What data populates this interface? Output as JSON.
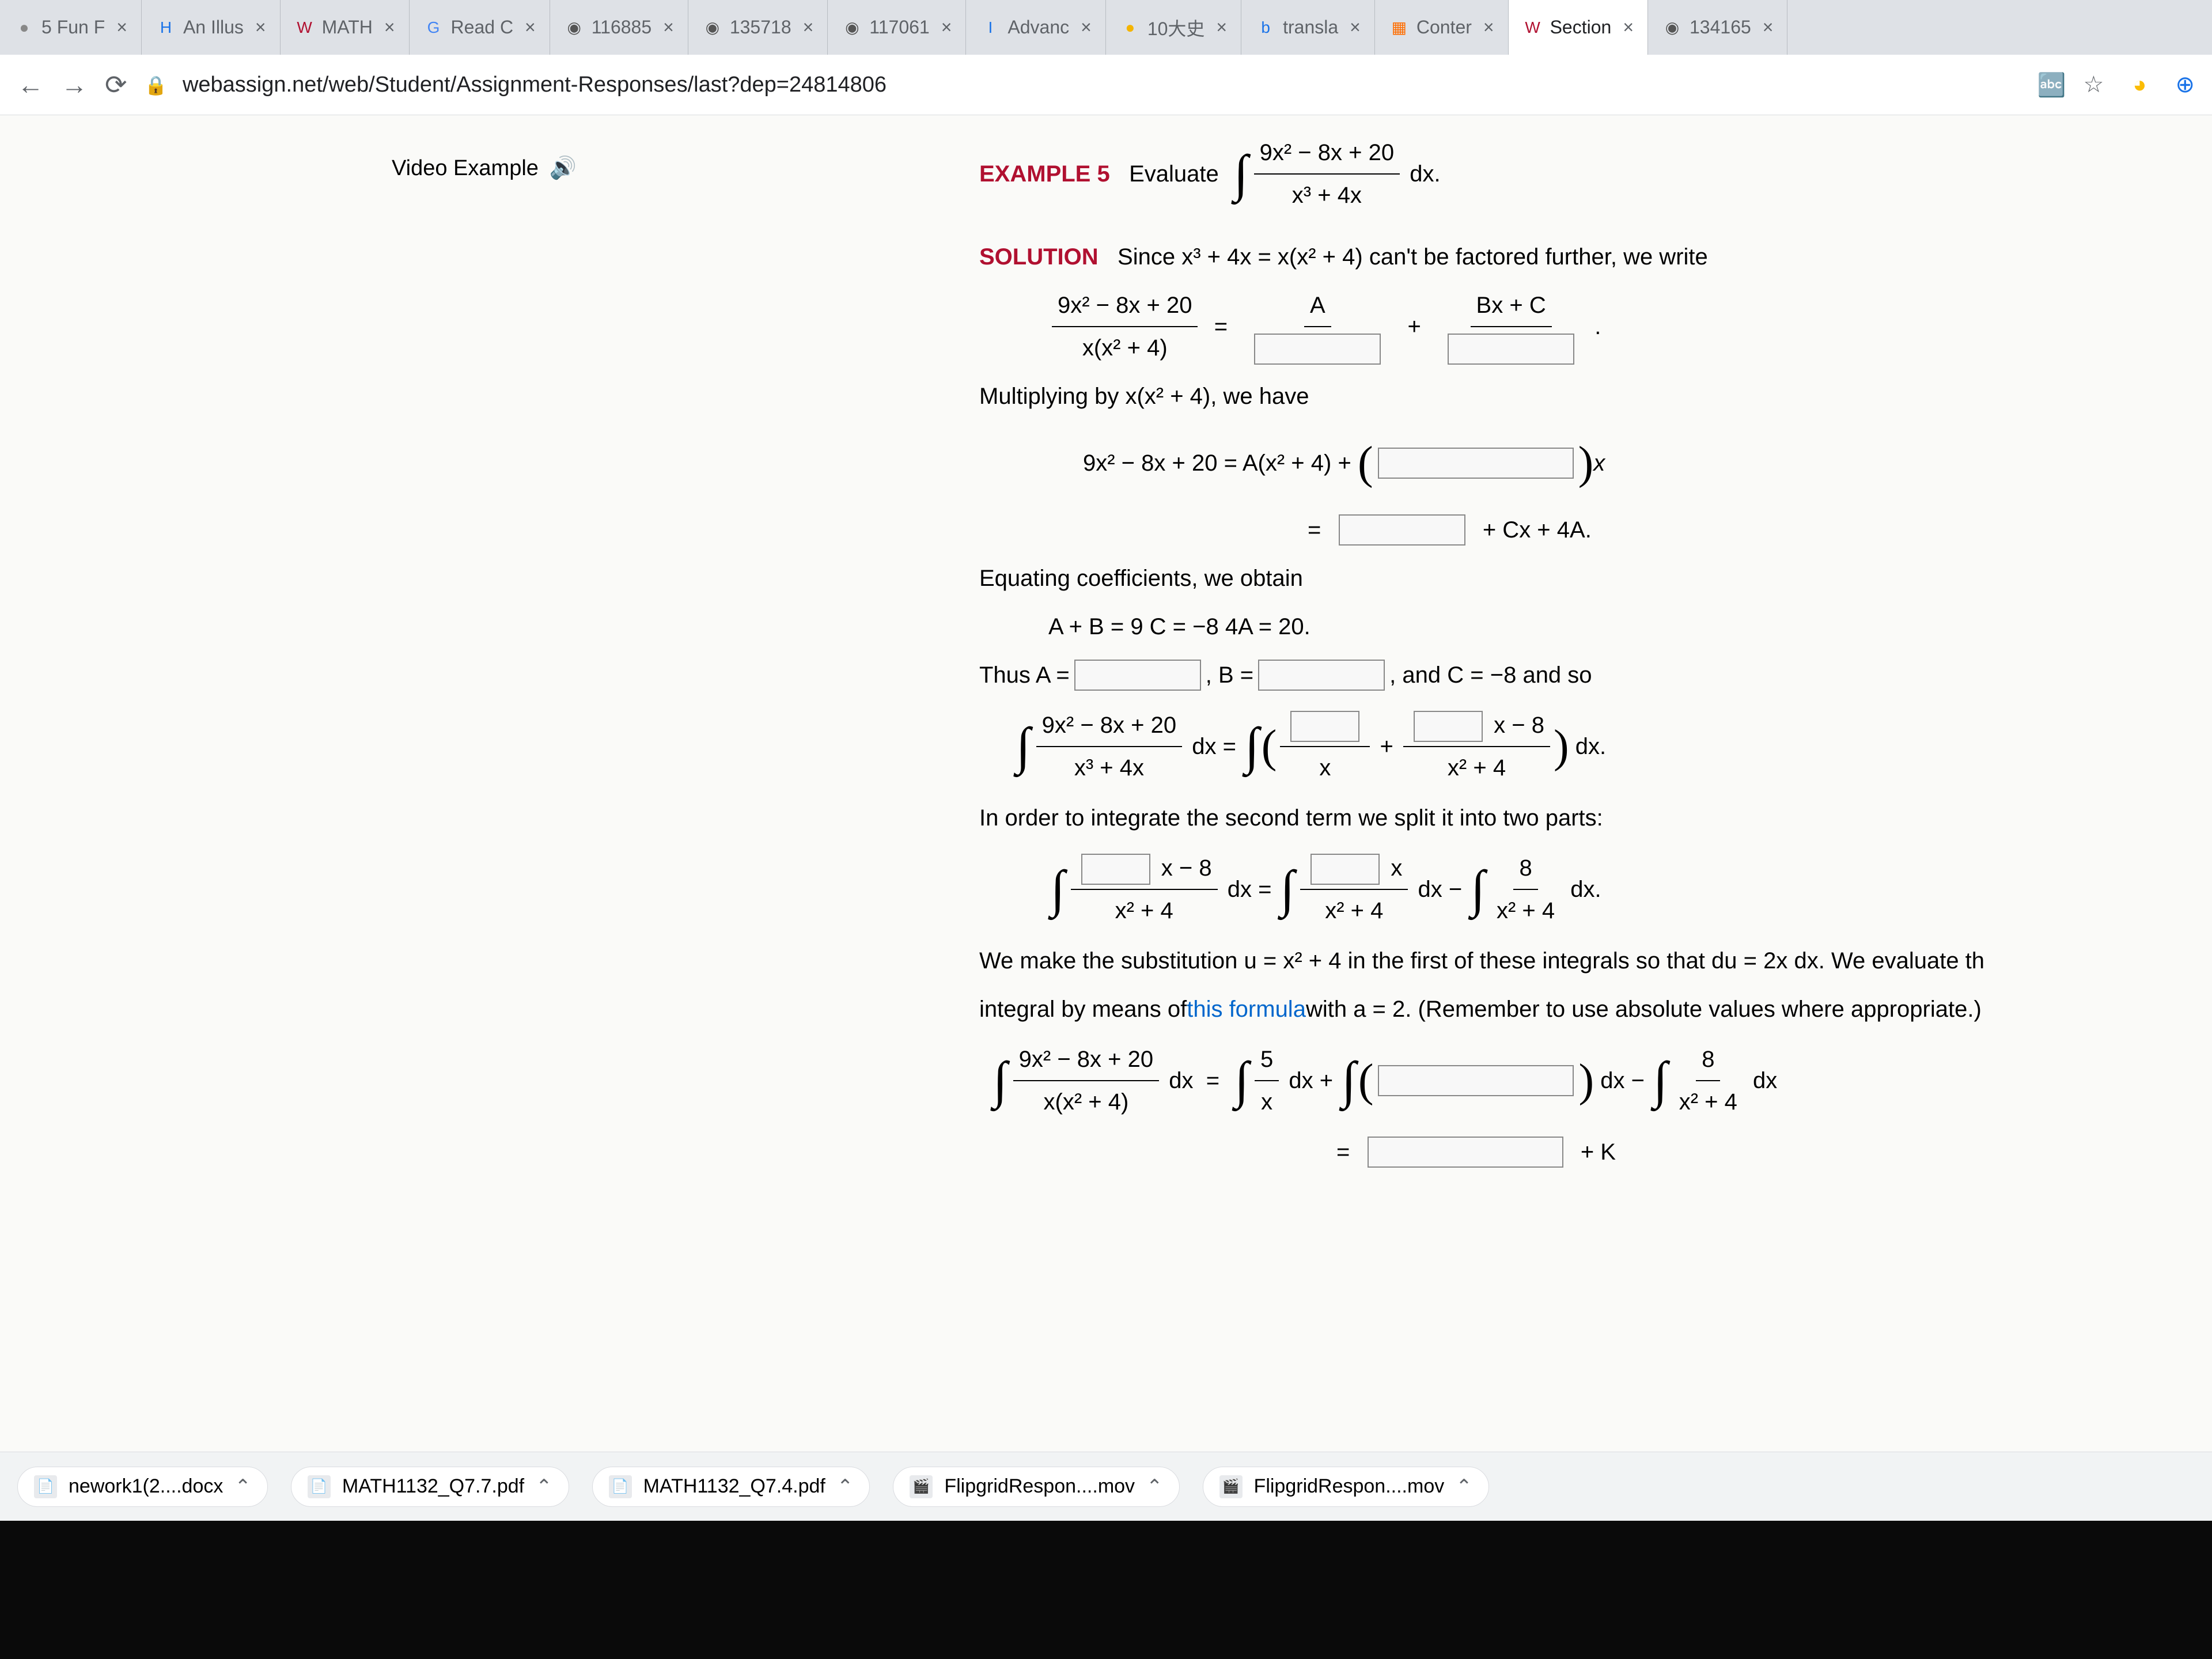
{
  "browser": {
    "tabs": [
      {
        "fav": "●",
        "label": "5 Fun F",
        "favcolor": "#888"
      },
      {
        "fav": "H",
        "label": "An Illus",
        "favcolor": "#1a73e8"
      },
      {
        "fav": "W",
        "label": "MATH",
        "favcolor": "#b01030"
      },
      {
        "fav": "G",
        "label": "Read C",
        "favcolor": "#4285f4"
      },
      {
        "fav": "◉",
        "label": "116885",
        "favcolor": "#555"
      },
      {
        "fav": "◉",
        "label": "135718",
        "favcolor": "#555"
      },
      {
        "fav": "◉",
        "label": "117061",
        "favcolor": "#555"
      },
      {
        "fav": "I",
        "label": "Advanc",
        "favcolor": "#1a73e8"
      },
      {
        "fav": "●",
        "label": "10大史",
        "favcolor": "#f4b400"
      },
      {
        "fav": "b",
        "label": "transla",
        "favcolor": "#1a73e8"
      },
      {
        "fav": "▦",
        "label": "Conter",
        "favcolor": "#ff6d00"
      },
      {
        "fav": "W",
        "label": "Section",
        "favcolor": "#b01030",
        "active": true
      },
      {
        "fav": "◉",
        "label": "134165",
        "favcolor": "#555"
      }
    ],
    "url": "webassign.net/web/Student/Assignment-Responses/last?dep=24814806"
  },
  "content": {
    "video_example": "Video Example",
    "example_label": "EXAMPLE 5",
    "evaluate": "Evaluate",
    "int_num": "9x² − 8x + 20",
    "int_den": "x³ + 4x",
    "dx": "dx.",
    "solution_label": "SOLUTION",
    "since": "Since  x³ + 4x = x(x² + 4)  can't be factored further, we write",
    "pf_lhs_num": "9x² − 8x + 20",
    "pf_lhs_den": "x(x² + 4)",
    "A": "A",
    "BxC": "Bx + C",
    "mult": "Multiplying by  x(x² + 4),  we have",
    "eq1": "9x² − 8x + 20  =  A(x² + 4) +",
    "eq1_rhs": "x",
    "eq2_rhs": "+ Cx + 4A.",
    "equating": "Equating coefficients, we obtain",
    "coeffs": "A + B = 9      C = −8      4A = 20.",
    "thus": "Thus  A =",
    "comma_b": ",  B =",
    "and_c": ",  and  C = −8  and so",
    "int2_num": "9x² − 8x + 20",
    "int2_den": "x³ + 4x",
    "dx_eq": "dx  =",
    "over_x": "x",
    "plus": "+",
    "xm8": "x − 8",
    "x2p4": "x² + 4",
    "dxp": "dx.",
    "inorder": "In order to integrate the second term we split it into two parts:",
    "split_xm8": "x − 8",
    "split_x2p4": "x² + 4",
    "split_dxeq": "dx  =",
    "split_x": "x",
    "split_dxminus": "dx  −",
    "eight": "8",
    "wemake1": "We make the substitution  u = x² + 4  in the first of these integrals so that  du = 2x dx.  We evaluate th",
    "wemake2": "integral by means of ",
    "thisformula": "this formula",
    "wemake3": " with  a = 2.  (Remember to use absolute values where appropriate.)",
    "final_num": "9x² − 8x + 20",
    "final_den": "x(x² + 4)",
    "five": "5",
    "dxplus": "dx +",
    "dxminus": "dx  −",
    "plusK": "+ K"
  },
  "downloads": {
    "items": [
      {
        "name": "nework1(2....docx"
      },
      {
        "name": "MATH1132_Q7.7.pdf"
      },
      {
        "name": "MATH1132_Q7.4.pdf"
      },
      {
        "name": "FlipgridRespon....mov"
      },
      {
        "name": "FlipgridRespon....mov"
      }
    ]
  },
  "colors": {
    "accent": "#b01030",
    "link": "#0066cc",
    "chrome_bg": "#dee1e6",
    "page_bg": "#fafaf8"
  }
}
